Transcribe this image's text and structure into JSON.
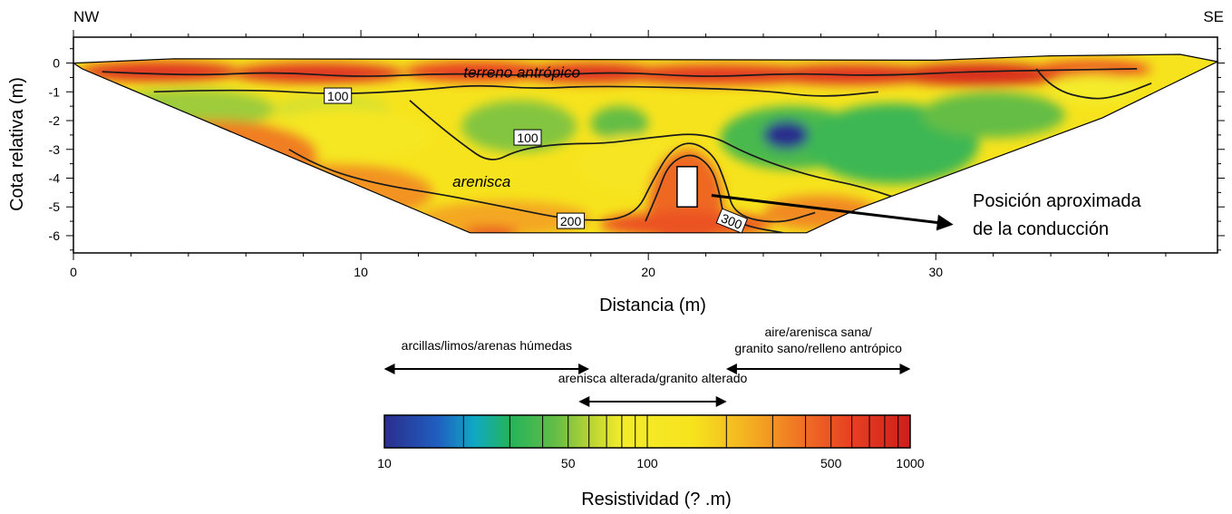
{
  "chart_data": {
    "type": "heatmap",
    "orientation_left": "NW",
    "orientation_right": "SE",
    "xlabel": "Distancia (m)",
    "ylabel": "Cota relativa (m)",
    "xlim": [
      0,
      39.8
    ],
    "ylim": [
      -6.6,
      0.9
    ],
    "x_ticks": [
      {
        "value": 0,
        "label": "0"
      },
      {
        "value": 10,
        "label": "10"
      },
      {
        "value": 20,
        "label": "20"
      },
      {
        "value": 30,
        "label": "30"
      }
    ],
    "y_ticks": [
      {
        "value": 0,
        "label": "0"
      },
      {
        "value": -1,
        "label": "-1"
      },
      {
        "value": -2,
        "label": "-2"
      },
      {
        "value": -3,
        "label": "-3"
      },
      {
        "value": -4,
        "label": "-4"
      },
      {
        "value": -5,
        "label": "-5"
      },
      {
        "value": -6,
        "label": "-6"
      }
    ],
    "section_outline": [
      [
        0,
        0
      ],
      [
        3.5,
        0.15
      ],
      [
        30,
        0.1
      ],
      [
        34,
        0.25
      ],
      [
        38.5,
        0.3
      ],
      [
        39.8,
        0.05
      ],
      [
        35.8,
        -1.9
      ],
      [
        27.2,
        -5.1
      ],
      [
        25.5,
        -5.9
      ],
      [
        13.8,
        -5.9
      ],
      [
        0.3,
        -0.2
      ]
    ],
    "contours": [
      {
        "label": "100",
        "level": 100,
        "label_at": [
          9.2,
          -1.15
        ],
        "points": [
          [
            2.8,
            -1.0
          ],
          [
            6,
            -0.9
          ],
          [
            9,
            -1.1
          ],
          [
            12,
            -0.95
          ],
          [
            14,
            -0.75
          ],
          [
            16,
            -0.9
          ],
          [
            18,
            -0.8
          ],
          [
            21,
            -0.85
          ],
          [
            24,
            -0.95
          ],
          [
            26,
            -1.2
          ],
          [
            28,
            -1.0
          ]
        ]
      },
      {
        "label": "100",
        "level": 100,
        "label_at": [
          15.8,
          -2.6
        ],
        "points": [
          [
            11.7,
            -1.3
          ],
          [
            12.5,
            -2.0
          ],
          [
            13.5,
            -2.8
          ],
          [
            14.5,
            -3.5
          ],
          [
            15.5,
            -3.0
          ],
          [
            17,
            -2.8
          ],
          [
            18.5,
            -2.8
          ],
          [
            20,
            -2.6
          ],
          [
            22,
            -2.4
          ],
          [
            23.5,
            -3.2
          ],
          [
            25.5,
            -3.9
          ],
          [
            27.5,
            -4.3
          ],
          [
            29.5,
            -5.0
          ]
        ]
      },
      {
        "label": "200",
        "level": 200,
        "label_at": [
          17.3,
          -5.5
        ],
        "points": [
          [
            7.5,
            -3.0
          ],
          [
            8.5,
            -3.6
          ],
          [
            10.5,
            -4.2
          ],
          [
            13,
            -4.6
          ],
          [
            15,
            -5.0
          ],
          [
            17.5,
            -5.5
          ],
          [
            19.5,
            -5.4
          ],
          [
            20.2,
            -4.0
          ],
          [
            20.8,
            -3.0
          ],
          [
            21.5,
            -2.7
          ],
          [
            22.3,
            -3.2
          ],
          [
            22.7,
            -4.2
          ],
          [
            23,
            -5.3
          ],
          [
            24.5,
            -5.6
          ],
          [
            25.8,
            -5.2
          ]
        ]
      },
      {
        "label": "300",
        "level": 300,
        "label_at": [
          22.9,
          -5.5
        ],
        "points": [
          [
            19.9,
            -5.5
          ],
          [
            20.3,
            -4.6
          ],
          [
            20.7,
            -3.5
          ],
          [
            21.5,
            -3.1
          ],
          [
            22.2,
            -3.6
          ],
          [
            22.5,
            -4.6
          ],
          [
            22.6,
            -5.3
          ],
          [
            23.5,
            -5.7
          ],
          [
            24.7,
            -5.9
          ]
        ]
      },
      {
        "label": "",
        "level": 500,
        "points": [
          [
            1,
            -0.3
          ],
          [
            4,
            -0.45
          ],
          [
            7,
            -0.3
          ],
          [
            10,
            -0.5
          ],
          [
            13,
            -0.35
          ],
          [
            16,
            -0.45
          ],
          [
            19,
            -0.3
          ],
          [
            22,
            -0.5
          ],
          [
            25,
            -0.35
          ],
          [
            28,
            -0.45
          ],
          [
            31,
            -0.3
          ],
          [
            34,
            -0.25
          ],
          [
            37,
            -0.2
          ]
        ]
      },
      {
        "label": "",
        "level": 500,
        "points": [
          [
            33.5,
            -0.2
          ],
          [
            34,
            -0.9
          ],
          [
            35.5,
            -1.3
          ],
          [
            36.5,
            -1.1
          ],
          [
            37.5,
            -0.7
          ]
        ]
      }
    ],
    "annotations": [
      {
        "text": "terreno antrópico",
        "x": 15.6,
        "y": -0.5
      },
      {
        "text": "arenisca",
        "x": 14.2,
        "y": -4.3
      }
    ],
    "pipe": {
      "x0": 21.0,
      "x1": 21.7,
      "y_top": -3.6,
      "y_bottom": -5.0
    },
    "callout": {
      "text_line1": "Posición aproximada",
      "text_line2": "de la conducción",
      "from": [
        22.2,
        -4.6
      ],
      "to": [
        30.5,
        -5.6
      ]
    },
    "colorbar": {
      "label": "Resistividad (? .m)",
      "min": 10,
      "max": 1000,
      "scale": "log",
      "tick_labels": [
        {
          "value": 10,
          "label": "10"
        },
        {
          "value": 50,
          "label": "50"
        },
        {
          "value": 100,
          "label": "100"
        },
        {
          "value": 500,
          "label": "500"
        },
        {
          "value": 1000,
          "label": "1000"
        }
      ],
      "boundaries": [
        20,
        30,
        40,
        50,
        60,
        70,
        80,
        90,
        100,
        200,
        300,
        400,
        500,
        600,
        700,
        800,
        900
      ],
      "colors": [
        {
          "v": 10,
          "c": "#2b2d8c"
        },
        {
          "v": 16,
          "c": "#1f5fc0"
        },
        {
          "v": 22,
          "c": "#10a8c4"
        },
        {
          "v": 30,
          "c": "#23b35a"
        },
        {
          "v": 45,
          "c": "#65bd45"
        },
        {
          "v": 60,
          "c": "#b6d335"
        },
        {
          "v": 80,
          "c": "#f4ec2a"
        },
        {
          "v": 150,
          "c": "#f6e31d"
        },
        {
          "v": 250,
          "c": "#f4ac22"
        },
        {
          "v": 400,
          "c": "#ef6c24"
        },
        {
          "v": 600,
          "c": "#e83f22"
        },
        {
          "v": 1000,
          "c": "#cc1f1b"
        }
      ],
      "ranges": [
        {
          "text": "arcillas/limos/arenas húmedas",
          "from": 10,
          "to": 60
        },
        {
          "text": "arenisca alterada/granito alterado",
          "from": 55,
          "to": 200
        },
        {
          "text_line1": "aire/arenisca sana/",
          "text_line2": "granito sano/relleno antrópico",
          "from": 200,
          "to": 1000
        }
      ]
    },
    "anomalies": [
      {
        "x": 3,
        "y": -0.3,
        "r": [
          2.8,
          0.35
        ],
        "v": 700
      },
      {
        "x": 8.5,
        "y": -0.35,
        "r": [
          3.0,
          0.35
        ],
        "v": 700
      },
      {
        "x": 14,
        "y": -0.3,
        "r": [
          2.5,
          0.35
        ],
        "v": 600
      },
      {
        "x": 18,
        "y": -0.35,
        "r": [
          2.5,
          0.35
        ],
        "v": 700
      },
      {
        "x": 22.5,
        "y": -0.4,
        "r": [
          3.5,
          0.35
        ],
        "v": 650
      },
      {
        "x": 27,
        "y": -0.4,
        "r": [
          3.0,
          0.35
        ],
        "v": 700
      },
      {
        "x": 31.5,
        "y": -0.4,
        "r": [
          3.0,
          0.4
        ],
        "v": 800
      },
      {
        "x": 35.5,
        "y": -0.2,
        "r": [
          2.0,
          0.3
        ],
        "v": 500
      },
      {
        "x": 4,
        "y": -1.6,
        "r": [
          3.0,
          0.7
        ],
        "v": 55
      },
      {
        "x": 9,
        "y": -1.6,
        "r": [
          2.0,
          0.5
        ],
        "v": 70
      },
      {
        "x": 15.5,
        "y": -2.2,
        "r": [
          2.0,
          0.9
        ],
        "v": 50
      },
      {
        "x": 19,
        "y": -2.1,
        "r": [
          1.0,
          0.6
        ],
        "v": 45
      },
      {
        "x": 25,
        "y": -2.6,
        "r": [
          2.5,
          1.1
        ],
        "v": 38
      },
      {
        "x": 24.8,
        "y": -2.5,
        "r": [
          0.8,
          0.5
        ],
        "v": 10
      },
      {
        "x": 28.5,
        "y": -2.8,
        "r": [
          3.0,
          1.4
        ],
        "v": 35
      },
      {
        "x": 32,
        "y": -1.8,
        "r": [
          2.5,
          0.8
        ],
        "v": 45
      },
      {
        "x": 35.5,
        "y": -0.9,
        "r": [
          1.5,
          0.5
        ],
        "v": 80
      },
      {
        "x": 19.5,
        "y": -3.5,
        "r": [
          2.0,
          1.0
        ],
        "v": 130
      },
      {
        "x": 9.5,
        "y": -2.5,
        "r": [
          3.0,
          0.9
        ],
        "v": 110
      },
      {
        "x": 21.3,
        "y": -4.8,
        "r": [
          1.3,
          1.8
        ],
        "v": 420
      },
      {
        "x": 21.3,
        "y": -5.6,
        "r": [
          3.0,
          0.45
        ],
        "v": 500
      },
      {
        "x": 5,
        "y": -3.2,
        "r": [
          3.5,
          1.2
        ],
        "v": 350
      },
      {
        "x": 9,
        "y": -4.5,
        "r": [
          3.5,
          1.0
        ],
        "v": 300
      },
      {
        "x": 15,
        "y": -5.4,
        "r": [
          3.0,
          0.6
        ],
        "v": 260
      },
      {
        "x": 26,
        "y": -5.2,
        "r": [
          2.0,
          0.6
        ],
        "v": 320
      },
      {
        "x": 14.5,
        "y": -5.9,
        "r": [
          1.0,
          0.2
        ],
        "v": 600
      }
    ],
    "background_value": 150
  }
}
